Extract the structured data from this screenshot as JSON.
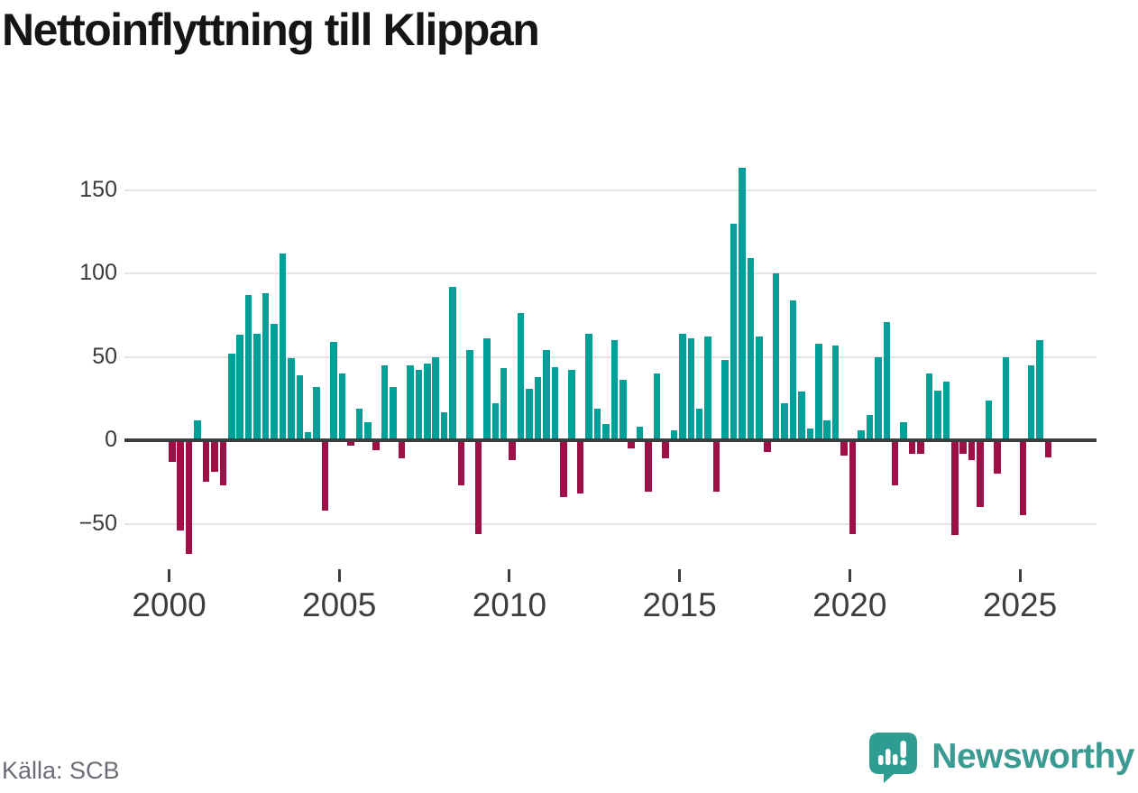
{
  "title": "Nettoinflyttning till Klippan",
  "footer": {
    "source": "Källa: SCB",
    "brand": "Newsworthy"
  },
  "chart_data": {
    "type": "bar",
    "title": "Nettoinflyttning till Klippan",
    "xlabel": "",
    "ylabel": "",
    "ylim": [
      -75,
      175
    ],
    "grid": "horizontal",
    "legend": "none",
    "y_ticks": [
      150,
      100,
      50,
      0,
      -50
    ],
    "y_tick_labels": [
      "150",
      "100",
      "50",
      "0",
      "−50"
    ],
    "x_tick_years": [
      2000,
      2005,
      2010,
      2015,
      2020,
      2025
    ],
    "x_tick_labels": [
      "2000",
      "2005",
      "2010",
      "2015",
      "2020",
      "2025"
    ],
    "colors": {
      "positive": "#00a099",
      "negative": "#9d1048",
      "zero_line": "#3c3c3c",
      "gridline": "#e4e4e4"
    },
    "categories": [
      "2000 Q1",
      "2000 Q2",
      "2000 Q3",
      "2000 Q4",
      "2001 Q1",
      "2001 Q2",
      "2001 Q3",
      "2001 Q4",
      "2002 Q1",
      "2002 Q2",
      "2002 Q3",
      "2002 Q4",
      "2003 Q1",
      "2003 Q2",
      "2003 Q3",
      "2003 Q4",
      "2004 Q1",
      "2004 Q2",
      "2004 Q3",
      "2004 Q4",
      "2005 Q1",
      "2005 Q2",
      "2005 Q3",
      "2005 Q4",
      "2006 Q1",
      "2006 Q2",
      "2006 Q3",
      "2006 Q4",
      "2007 Q1",
      "2007 Q2",
      "2007 Q3",
      "2007 Q4",
      "2008 Q1",
      "2008 Q2",
      "2008 Q3",
      "2008 Q4",
      "2009 Q1",
      "2009 Q2",
      "2009 Q3",
      "2009 Q4",
      "2010 Q1",
      "2010 Q2",
      "2010 Q3",
      "2010 Q4",
      "2011 Q1",
      "2011 Q2",
      "2011 Q3",
      "2011 Q4",
      "2012 Q1",
      "2012 Q2",
      "2012 Q3",
      "2012 Q4",
      "2013 Q1",
      "2013 Q2",
      "2013 Q3",
      "2013 Q4",
      "2014 Q1",
      "2014 Q2",
      "2014 Q3",
      "2014 Q4",
      "2015 Q1",
      "2015 Q2",
      "2015 Q3",
      "2015 Q4",
      "2016 Q1",
      "2016 Q2",
      "2016 Q3",
      "2016 Q4",
      "2017 Q1",
      "2017 Q2",
      "2017 Q3",
      "2017 Q4",
      "2018 Q1",
      "2018 Q2",
      "2018 Q3",
      "2018 Q4",
      "2019 Q1",
      "2019 Q2",
      "2019 Q3",
      "2019 Q4",
      "2020 Q1",
      "2020 Q2",
      "2020 Q3",
      "2020 Q4",
      "2021 Q1",
      "2021 Q2",
      "2021 Q3",
      "2021 Q4",
      "2022 Q1",
      "2022 Q2",
      "2022 Q3",
      "2022 Q4",
      "2023 Q1",
      "2023 Q2",
      "2023 Q3",
      "2023 Q4",
      "2024 Q1",
      "2024 Q2",
      "2024 Q3",
      "2024 Q4",
      "2025 Q1",
      "2025 Q2",
      "2025 Q3",
      "2025 Q4"
    ],
    "values": [
      -13,
      -54,
      -68,
      12,
      -25,
      -19,
      -27,
      52,
      63,
      87,
      64,
      88,
      70,
      112,
      49,
      39,
      5,
      32,
      -42,
      59,
      40,
      -3,
      19,
      11,
      -6,
      45,
      32,
      -11,
      45,
      42,
      46,
      50,
      17,
      92,
      -27,
      54,
      -56,
      61,
      22,
      43,
      -12,
      76,
      31,
      38,
      54,
      44,
      -34,
      42,
      -32,
      64,
      19,
      10,
      60,
      36,
      -5,
      8,
      -31,
      40,
      -11,
      6,
      64,
      61,
      19,
      62,
      -31,
      48,
      130,
      163,
      109,
      62,
      -7,
      100,
      22,
      84,
      29,
      7,
      58,
      12,
      57,
      -9,
      -56,
      6,
      15,
      50,
      71,
      -27,
      11,
      -8,
      -8,
      40,
      30,
      35,
      -57,
      -8,
      -12,
      -40,
      24,
      -20,
      50,
      0,
      -45,
      45,
      60,
      -10
    ]
  }
}
